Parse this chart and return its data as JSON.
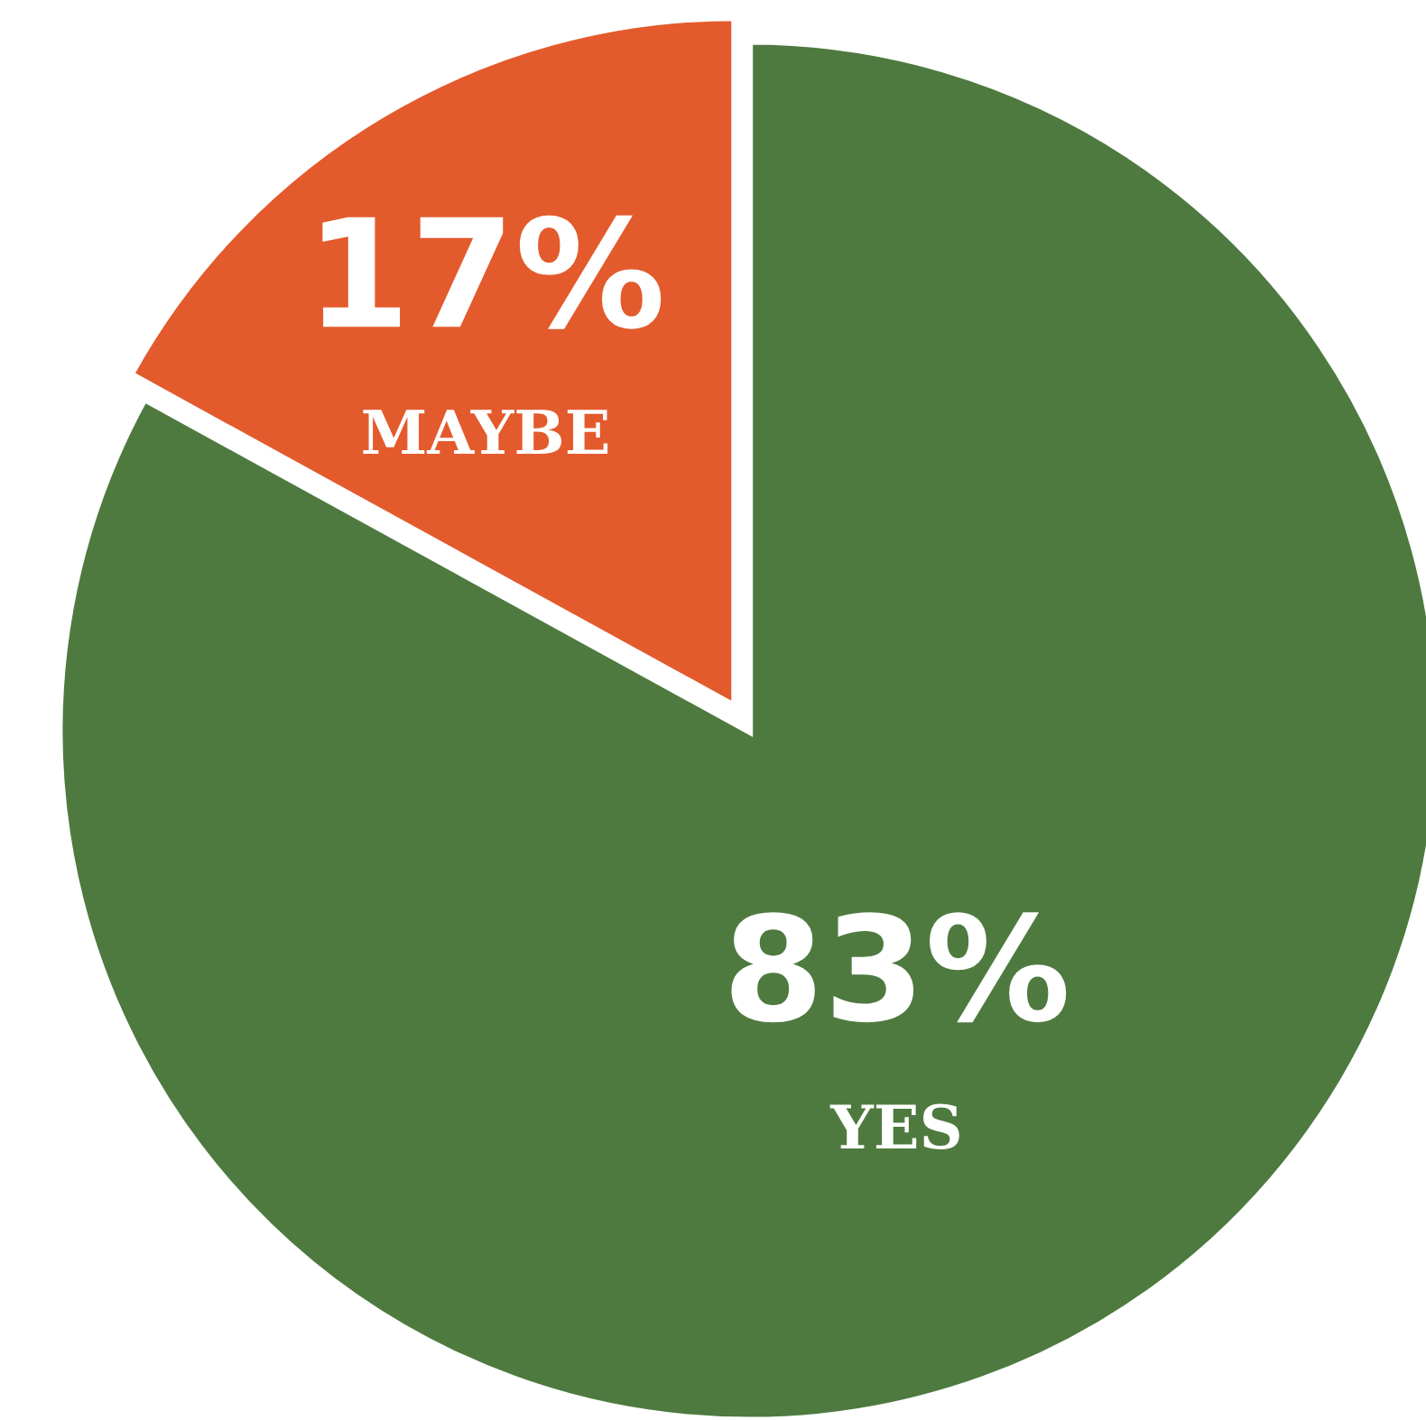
{
  "chart_data": {
    "type": "pie",
    "categories": [
      "MAYBE",
      "YES"
    ],
    "values": [
      17,
      83
    ],
    "colors": [
      "#e35a2c",
      "#4e7a3f"
    ],
    "value_labels": [
      "17%",
      "83%"
    ],
    "legend": false
  }
}
